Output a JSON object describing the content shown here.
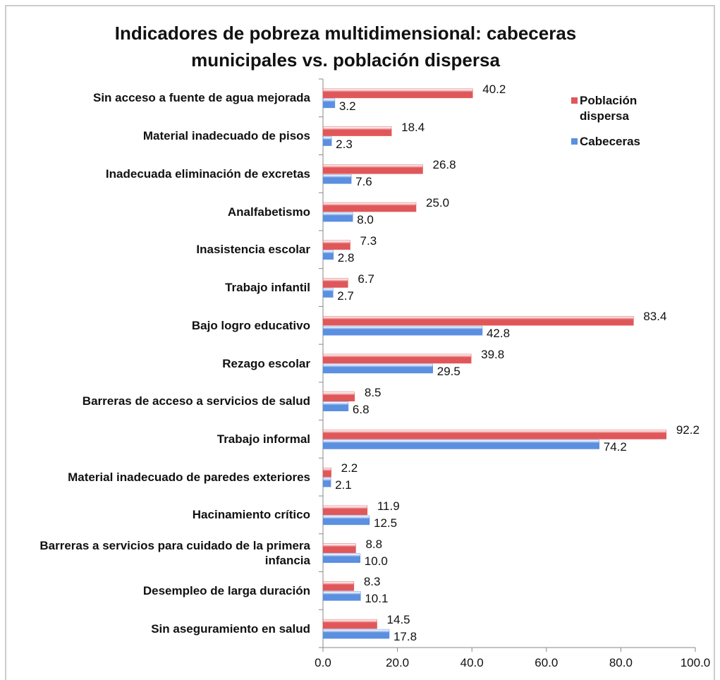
{
  "chart_data": {
    "type": "hbar",
    "title": "Indicadores de pobreza multidimensional: cabeceras municipales vs. población dispersa",
    "categories": [
      "Sin acceso a fuente de agua mejorada",
      "Material inadecuado de pisos",
      "Inadecuada eliminación de excretas",
      "Analfabetismo",
      "Inasistencia escolar",
      "Trabajo infantil",
      "Bajo logro educativo",
      "Rezago escolar",
      "Barreras de acceso a servicios de salud",
      "Trabajo informal",
      "Material inadecuado de paredes exteriores",
      "Hacinamiento crítico",
      "Barreras a servicios para cuidado de la primera infancia",
      "Desempleo de larga duración",
      "Sin aseguramiento en salud"
    ],
    "series": [
      {
        "name": "Población dispersa",
        "color": "#e0575a",
        "values": [
          40.2,
          18.4,
          26.8,
          25.0,
          7.3,
          6.7,
          83.4,
          39.8,
          8.5,
          92.2,
          2.2,
          11.9,
          8.8,
          8.3,
          14.5
        ],
        "value_labels": [
          "40.2",
          "18.4",
          "26.8",
          "25.0",
          "7.3",
          "6.7",
          "83.4",
          "39.8",
          "8.5",
          "92.2",
          "2.2",
          "11.9",
          "8.8",
          "8.3",
          "14.5"
        ]
      },
      {
        "name": "Cabeceras",
        "color": "#5b8fe0",
        "values": [
          3.2,
          2.3,
          7.6,
          8.0,
          2.8,
          2.7,
          42.8,
          29.5,
          6.8,
          74.2,
          2.1,
          12.5,
          10.0,
          10.1,
          17.8
        ],
        "value_labels": [
          "3.2",
          "2.3",
          "7.6",
          "8.0",
          "2.8",
          "2.7",
          "42.8",
          "29.5",
          "6.8",
          "74.2",
          "2.1",
          "12.5",
          "10.0",
          "10.1",
          "17.8"
        ]
      }
    ],
    "xlim": [
      0,
      100
    ],
    "xticks": [
      {
        "value": 0,
        "label": "0.0"
      },
      {
        "value": 20,
        "label": "20.0"
      },
      {
        "value": 40,
        "label": "40.0"
      },
      {
        "value": 60,
        "label": "60.0"
      },
      {
        "value": 80,
        "label": "80.0"
      },
      {
        "value": 100,
        "label": "100.0"
      }
    ],
    "legend": "upper right"
  }
}
